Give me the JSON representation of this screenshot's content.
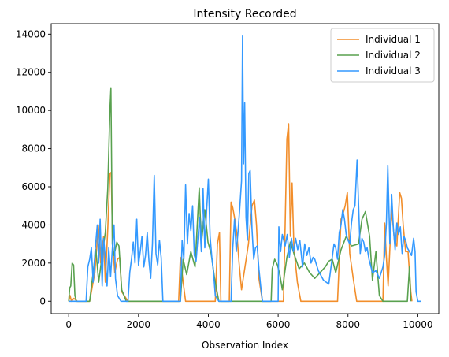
{
  "chart_data": {
    "type": "line",
    "title": "Intensity Recorded",
    "xlabel": "Observation Index",
    "ylabel": "",
    "xlim": [
      -500,
      10600
    ],
    "ylim": [
      -650,
      14550
    ],
    "xticks": [
      0,
      2000,
      4000,
      6000,
      8000,
      10000
    ],
    "yticks": [
      0,
      2000,
      4000,
      6000,
      8000,
      10000,
      12000,
      14000
    ],
    "grid": false,
    "legend_position": "top-right",
    "series": [
      {
        "name": "Individual 1",
        "color": "#f28e2b",
        "points": [
          [
            0,
            0
          ],
          [
            40,
            300
          ],
          [
            80,
            0
          ],
          [
            150,
            150
          ],
          [
            250,
            0
          ],
          [
            600,
            0
          ],
          [
            750,
            1500
          ],
          [
            850,
            4000
          ],
          [
            920,
            2000
          ],
          [
            1000,
            3400
          ],
          [
            1050,
            1000
          ],
          [
            1120,
            3800
          ],
          [
            1180,
            6700
          ],
          [
            1220,
            6750
          ],
          [
            1260,
            3000
          ],
          [
            1320,
            1500
          ],
          [
            1400,
            2200
          ],
          [
            1460,
            2300
          ],
          [
            1520,
            500
          ],
          [
            1700,
            0
          ],
          [
            3150,
            0
          ],
          [
            3200,
            2300
          ],
          [
            3280,
            1000
          ],
          [
            3350,
            0
          ],
          [
            4200,
            0
          ],
          [
            4260,
            3000
          ],
          [
            4320,
            3600
          ],
          [
            4360,
            0
          ],
          [
            4600,
            0
          ],
          [
            4650,
            5200
          ],
          [
            4700,
            4900
          ],
          [
            4760,
            4300
          ],
          [
            4820,
            3500
          ],
          [
            4880,
            2000
          ],
          [
            4950,
            600
          ],
          [
            5150,
            3000
          ],
          [
            5250,
            5000
          ],
          [
            5320,
            5300
          ],
          [
            5380,
            4000
          ],
          [
            5450,
            1200
          ],
          [
            5550,
            0
          ],
          [
            6150,
            0
          ],
          [
            6200,
            4000
          ],
          [
            6250,
            8500
          ],
          [
            6300,
            9300
          ],
          [
            6350,
            3400
          ],
          [
            6400,
            6200
          ],
          [
            6450,
            2800
          ],
          [
            6550,
            1000
          ],
          [
            6650,
            0
          ],
          [
            7700,
            0
          ],
          [
            7800,
            4300
          ],
          [
            7860,
            4600
          ],
          [
            7920,
            5000
          ],
          [
            7980,
            5700
          ],
          [
            8050,
            2500
          ],
          [
            8150,
            1200
          ],
          [
            8250,
            0
          ],
          [
            9000,
            0
          ],
          [
            9050,
            4100
          ],
          [
            9100,
            2300
          ],
          [
            9150,
            800
          ],
          [
            9250,
            4800
          ],
          [
            9330,
            3200
          ],
          [
            9400,
            2900
          ],
          [
            9480,
            5700
          ],
          [
            9530,
            5400
          ],
          [
            9580,
            4000
          ],
          [
            9650,
            2600
          ],
          [
            9720,
            2600
          ],
          [
            9800,
            500
          ],
          [
            9830,
            0
          ]
        ]
      },
      {
        "name": "Individual 2",
        "color": "#59a14f",
        "points": [
          [
            0,
            0
          ],
          [
            30,
            700
          ],
          [
            60,
            800
          ],
          [
            100,
            2000
          ],
          [
            140,
            1900
          ],
          [
            180,
            300
          ],
          [
            220,
            0
          ],
          [
            600,
            0
          ],
          [
            700,
            1500
          ],
          [
            780,
            2700
          ],
          [
            860,
            1000
          ],
          [
            950,
            2300
          ],
          [
            1050,
            3600
          ],
          [
            1120,
            5900
          ],
          [
            1180,
            10000
          ],
          [
            1210,
            11150
          ],
          [
            1250,
            3000
          ],
          [
            1300,
            2400
          ],
          [
            1380,
            3100
          ],
          [
            1440,
            2900
          ],
          [
            1520,
            600
          ],
          [
            1650,
            0
          ],
          [
            3200,
            0
          ],
          [
            3280,
            2200
          ],
          [
            3380,
            1400
          ],
          [
            3500,
            2600
          ],
          [
            3620,
            1800
          ],
          [
            3740,
            5950
          ],
          [
            3800,
            3000
          ],
          [
            3900,
            4800
          ],
          [
            3990,
            3100
          ],
          [
            4080,
            2500
          ],
          [
            4180,
            1200
          ],
          [
            4300,
            0
          ],
          [
            5800,
            0
          ],
          [
            5830,
            1700
          ],
          [
            5900,
            2200
          ],
          [
            5980,
            1900
          ],
          [
            6050,
            1400
          ],
          [
            6120,
            600
          ],
          [
            6250,
            2300
          ],
          [
            6350,
            3100
          ],
          [
            6450,
            2500
          ],
          [
            6600,
            1700
          ],
          [
            6750,
            2000
          ],
          [
            6900,
            1500
          ],
          [
            7050,
            1200
          ],
          [
            7200,
            1500
          ],
          [
            7350,
            1800
          ],
          [
            7450,
            2100
          ],
          [
            7550,
            2200
          ],
          [
            7650,
            1500
          ],
          [
            7800,
            2700
          ],
          [
            7950,
            3400
          ],
          [
            8100,
            2900
          ],
          [
            8300,
            3000
          ],
          [
            8400,
            4300
          ],
          [
            8500,
            4700
          ],
          [
            8620,
            3400
          ],
          [
            8700,
            1100
          ],
          [
            8800,
            2600
          ],
          [
            8900,
            300
          ],
          [
            9000,
            0
          ],
          [
            9700,
            0
          ],
          [
            9760,
            1800
          ],
          [
            9800,
            0
          ]
        ]
      },
      {
        "name": "Individual 3",
        "color": "#3399ff",
        "points": [
          [
            0,
            0
          ],
          [
            500,
            0
          ],
          [
            550,
            1800
          ],
          [
            600,
            2200
          ],
          [
            650,
            2800
          ],
          [
            700,
            1000
          ],
          [
            760,
            2700
          ],
          [
            820,
            4000
          ],
          [
            860,
            2000
          ],
          [
            900,
            4300
          ],
          [
            960,
            800
          ],
          [
            1000,
            3300
          ],
          [
            1050,
            2300
          ],
          [
            1100,
            800
          ],
          [
            1150,
            2800
          ],
          [
            1200,
            1300
          ],
          [
            1260,
            3000
          ],
          [
            1300,
            4000
          ],
          [
            1340,
            1200
          ],
          [
            1400,
            300
          ],
          [
            1500,
            0
          ],
          [
            1700,
            0
          ],
          [
            1750,
            1500
          ],
          [
            1800,
            2200
          ],
          [
            1850,
            3100
          ],
          [
            1900,
            2000
          ],
          [
            1950,
            4300
          ],
          [
            2000,
            1900
          ],
          [
            2050,
            2600
          ],
          [
            2100,
            3400
          ],
          [
            2150,
            1800
          ],
          [
            2200,
            2400
          ],
          [
            2250,
            3600
          ],
          [
            2300,
            2100
          ],
          [
            2350,
            1200
          ],
          [
            2400,
            3000
          ],
          [
            2450,
            6600
          ],
          [
            2500,
            2500
          ],
          [
            2550,
            1900
          ],
          [
            2600,
            3200
          ],
          [
            2650,
            2300
          ],
          [
            2700,
            0
          ],
          [
            3200,
            0
          ],
          [
            3250,
            3200
          ],
          [
            3300,
            2200
          ],
          [
            3350,
            6100
          ],
          [
            3400,
            3000
          ],
          [
            3450,
            4600
          ],
          [
            3500,
            3700
          ],
          [
            3550,
            5000
          ],
          [
            3600,
            2400
          ],
          [
            3650,
            2100
          ],
          [
            3700,
            3300
          ],
          [
            3750,
            4400
          ],
          [
            3800,
            2600
          ],
          [
            3850,
            5900
          ],
          [
            3900,
            2800
          ],
          [
            3950,
            4700
          ],
          [
            4000,
            6400
          ],
          [
            4050,
            3400
          ],
          [
            4100,
            2300
          ],
          [
            4150,
            1500
          ],
          [
            4200,
            300
          ],
          [
            4300,
            0
          ],
          [
            4650,
            0
          ],
          [
            4700,
            2800
          ],
          [
            4750,
            4300
          ],
          [
            4800,
            2600
          ],
          [
            4850,
            3600
          ],
          [
            4900,
            4900
          ],
          [
            4950,
            6300
          ],
          [
            4980,
            13900
          ],
          [
            5010,
            7200
          ],
          [
            5040,
            10400
          ],
          [
            5080,
            4400
          ],
          [
            5120,
            3200
          ],
          [
            5160,
            6700
          ],
          [
            5200,
            6850
          ],
          [
            5250,
            3800
          ],
          [
            5300,
            2200
          ],
          [
            5350,
            2800
          ],
          [
            5400,
            2900
          ],
          [
            5450,
            1700
          ],
          [
            5500,
            800
          ],
          [
            5550,
            0
          ],
          [
            6000,
            0
          ],
          [
            6020,
            3900
          ],
          [
            6070,
            2600
          ],
          [
            6120,
            3500
          ],
          [
            6200,
            2900
          ],
          [
            6260,
            3500
          ],
          [
            6320,
            2300
          ],
          [
            6380,
            3300
          ],
          [
            6440,
            2600
          ],
          [
            6500,
            3300
          ],
          [
            6560,
            2700
          ],
          [
            6620,
            3200
          ],
          [
            6700,
            1800
          ],
          [
            6760,
            3000
          ],
          [
            6820,
            2400
          ],
          [
            6880,
            2800
          ],
          [
            6940,
            2000
          ],
          [
            7000,
            2300
          ],
          [
            7050,
            2200
          ],
          [
            7150,
            1600
          ],
          [
            7300,
            1100
          ],
          [
            7450,
            900
          ],
          [
            7550,
            2300
          ],
          [
            7600,
            3000
          ],
          [
            7650,
            2800
          ],
          [
            7700,
            2200
          ],
          [
            7750,
            3600
          ],
          [
            7800,
            4000
          ],
          [
            7850,
            4800
          ],
          [
            7900,
            4300
          ],
          [
            7950,
            3500
          ],
          [
            8000,
            3200
          ],
          [
            8050,
            3000
          ],
          [
            8100,
            4100
          ],
          [
            8150,
            4800
          ],
          [
            8200,
            5000
          ],
          [
            8260,
            7400
          ],
          [
            8300,
            5200
          ],
          [
            8350,
            2500
          ],
          [
            8400,
            3300
          ],
          [
            8450,
            3100
          ],
          [
            8500,
            2600
          ],
          [
            8550,
            2800
          ],
          [
            8600,
            2200
          ],
          [
            8700,
            1500
          ],
          [
            8800,
            1600
          ],
          [
            8900,
            1200
          ],
          [
            9000,
            1800
          ],
          [
            9050,
            2400
          ],
          [
            9100,
            4100
          ],
          [
            9140,
            7100
          ],
          [
            9200,
            3000
          ],
          [
            9250,
            5600
          ],
          [
            9300,
            3800
          ],
          [
            9350,
            2700
          ],
          [
            9400,
            4100
          ],
          [
            9450,
            3500
          ],
          [
            9500,
            3900
          ],
          [
            9550,
            2500
          ],
          [
            9600,
            3400
          ],
          [
            9650,
            3200
          ],
          [
            9700,
            2800
          ],
          [
            9760,
            2600
          ],
          [
            9820,
            2400
          ],
          [
            9880,
            3300
          ],
          [
            9920,
            2600
          ],
          [
            9950,
            500
          ],
          [
            10000,
            0
          ],
          [
            10080,
            0
          ]
        ]
      }
    ]
  }
}
